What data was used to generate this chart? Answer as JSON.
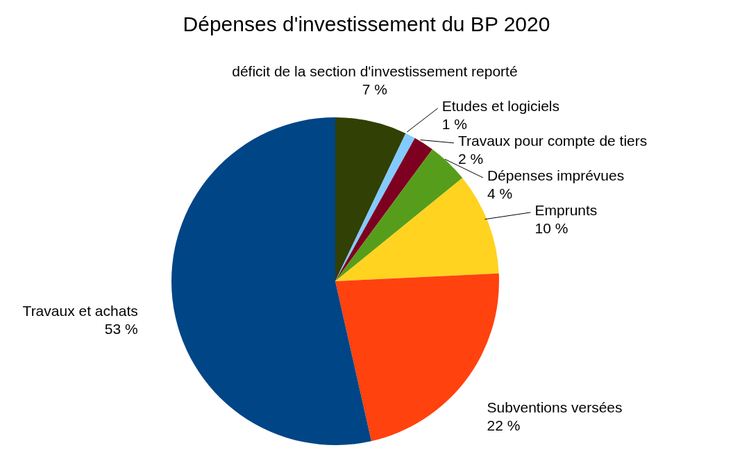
{
  "chart_data": {
    "type": "pie",
    "title": "Dépenses d'investissement du BP 2020",
    "categories": [
      "déficit de la section d'investissement reporté",
      "Etudes et logiciels",
      "Travaux pour compte de tiers",
      "Dépenses imprévues",
      "Emprunts",
      "Subventions versées",
      "Travaux et achats"
    ],
    "values": [
      7,
      1,
      2,
      4,
      10,
      22,
      53
    ],
    "value_labels": [
      "7 %",
      "1 %",
      "2 %",
      "4 %",
      "10 %",
      "22 %",
      "53 %"
    ],
    "colors": [
      "#314004",
      "#83caff",
      "#7e0021",
      "#579d1c",
      "#ffd320",
      "#ff420e",
      "#004586"
    ]
  }
}
